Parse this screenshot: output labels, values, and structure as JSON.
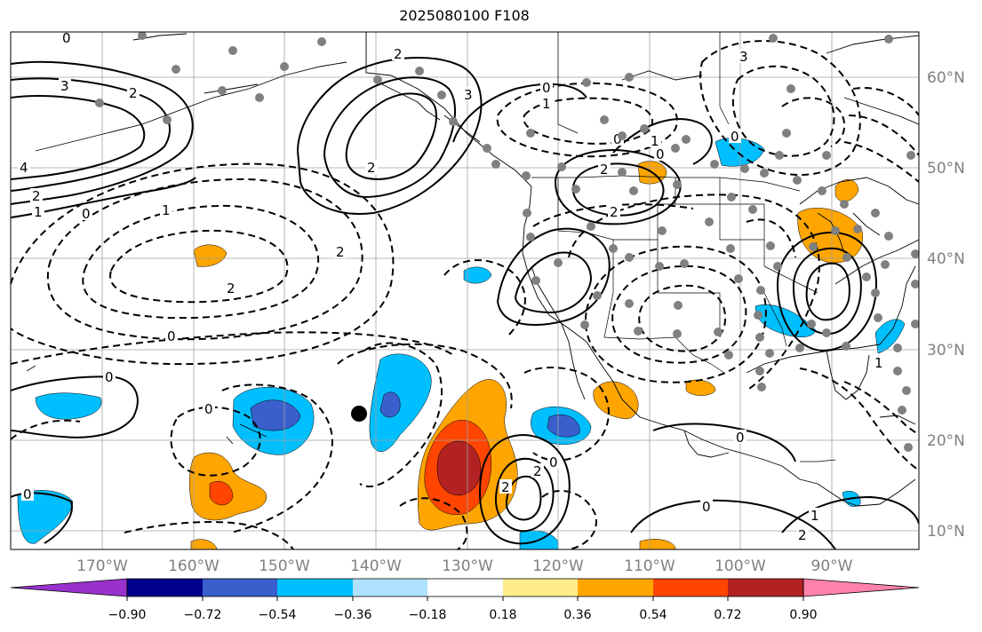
{
  "title": "2025080100 F108",
  "lon_labels": [
    "170°W",
    "160°W",
    "150°W",
    "140°W",
    "130°W",
    "120°W",
    "110°W",
    "100°W",
    "90°W"
  ],
  "lat_labels": [
    "60°N",
    "50°N",
    "40°N",
    "30°N",
    "20°N",
    "10°N"
  ],
  "colorbar": {
    "ticks": [
      "−0.90",
      "−0.72",
      "−0.54",
      "−0.36",
      "−0.18",
      "0.18",
      "0.36",
      "0.54",
      "0.72",
      "0.90"
    ],
    "colors": [
      "#9932cc",
      "#00008b",
      "#3a5fcd",
      "#00bfff",
      "#b0e2ff",
      "#ffffff",
      "#ffec8b",
      "#ffa500",
      "#ff4500",
      "#b22222",
      "#ff82ab"
    ]
  },
  "contour_labels": [
    "0",
    "3",
    "2",
    "4",
    "2",
    "1",
    "0",
    "2",
    "3",
    "0",
    "1",
    "2",
    "0",
    "2",
    "0",
    "1",
    "2",
    "0",
    "2",
    "2",
    "0",
    "0",
    "0",
    "0",
    "1",
    "0",
    "2",
    "2",
    "0",
    "1",
    "2",
    "3",
    "0",
    "1"
  ],
  "colors": {
    "solid": "#000000",
    "grid": "#a0a0a0",
    "station": "#808080",
    "tick_text": "#808080"
  }
}
